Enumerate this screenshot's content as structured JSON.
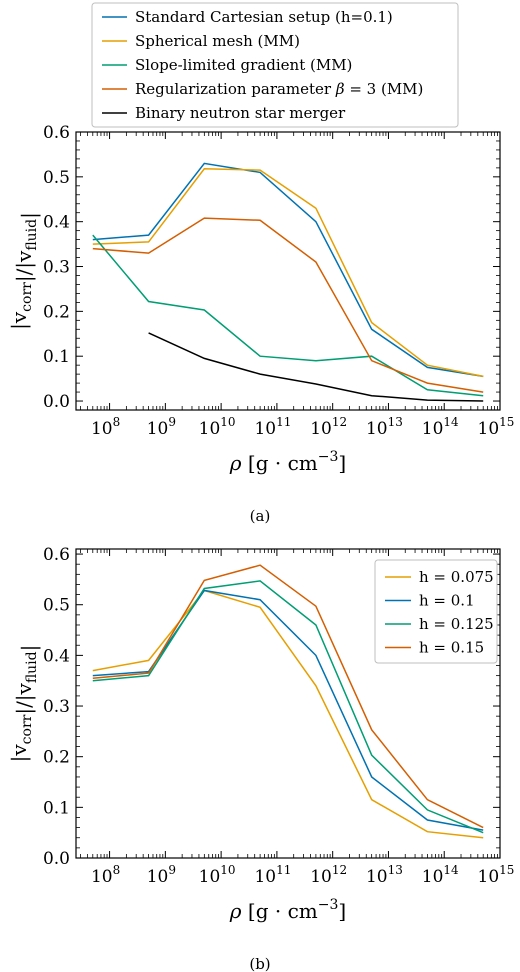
{
  "chart_data": [
    {
      "type": "line",
      "caption": "(a)",
      "xlabel": "ρ [g · cm⁻³]",
      "ylabel": "|v_corr|/|v_fluid|",
      "xscale": "log",
      "xlim": [
        25000000.0,
        1000000000000000.0
      ],
      "ylim": [
        -0.02,
        0.6
      ],
      "yticks": [
        "0.0",
        "0.1",
        "0.2",
        "0.3",
        "0.4",
        "0.5",
        "0.6"
      ],
      "xticks": [
        "10^8",
        "10^9",
        "10^10",
        "10^11",
        "10^12",
        "10^13",
        "10^14",
        "10^15"
      ],
      "legend_position": "above plot",
      "series": [
        {
          "name": "Standard Cartesian setup (h=0.1)",
          "color": "#0072B2",
          "x": [
            50000000.0,
            500000000.0,
            5000000000.0,
            50000000000.0,
            500000000000.0,
            5000000000000.0,
            50000000000000.0,
            500000000000000.0
          ],
          "y": [
            0.36,
            0.37,
            0.53,
            0.51,
            0.4,
            0.16,
            0.075,
            0.055
          ]
        },
        {
          "name": "Spherical mesh (MM)",
          "color": "#E69F00",
          "x": [
            50000000.0,
            500000000.0,
            5000000000.0,
            50000000000.0,
            500000000000.0,
            5000000000000.0,
            50000000000000.0,
            500000000000000.0
          ],
          "y": [
            0.35,
            0.355,
            0.518,
            0.515,
            0.43,
            0.175,
            0.08,
            0.055
          ]
        },
        {
          "name": "Slope-limited gradient (MM)",
          "color": "#009E73",
          "x": [
            50000000.0,
            500000000.0,
            5000000000.0,
            50000000000.0,
            500000000000.0,
            5000000000000.0,
            50000000000000.0,
            500000000000000.0
          ],
          "y": [
            0.37,
            0.222,
            0.203,
            0.1,
            0.09,
            0.1,
            0.025,
            0.012
          ]
        },
        {
          "name": "Regularization parameter β = 3 (MM)",
          "color": "#D55E00",
          "x": [
            50000000.0,
            500000000.0,
            5000000000.0,
            50000000000.0,
            500000000000.0,
            5000000000000.0,
            50000000000000.0,
            500000000000000.0
          ],
          "y": [
            0.34,
            0.33,
            0.408,
            0.403,
            0.31,
            0.09,
            0.04,
            0.02
          ]
        },
        {
          "name": "Binary neutron star merger",
          "color": "#000000",
          "x": [
            500000000.0,
            5000000000.0,
            50000000000.0,
            500000000000.0,
            5000000000000.0,
            50000000000000.0,
            500000000000000.0
          ],
          "y": [
            0.152,
            0.095,
            0.06,
            0.038,
            0.012,
            0.002,
            0.0
          ]
        }
      ]
    },
    {
      "type": "line",
      "caption": "(b)",
      "xlabel": "ρ [g · cm⁻³]",
      "ylabel": "|v_corr|/|v_fluid|",
      "xscale": "log",
      "xlim": [
        25000000.0,
        1000000000000000.0
      ],
      "ylim": [
        0.0,
        0.61
      ],
      "yticks": [
        "0.0",
        "0.1",
        "0.2",
        "0.3",
        "0.4",
        "0.5",
        "0.6"
      ],
      "xticks": [
        "10^8",
        "10^9",
        "10^10",
        "10^11",
        "10^12",
        "10^13",
        "10^14",
        "10^15"
      ],
      "legend_position": "upper right",
      "series": [
        {
          "name": "h = 0.075",
          "color": "#E69F00",
          "x": [
            50000000.0,
            500000000.0,
            5000000000.0,
            50000000000.0,
            500000000000.0,
            5000000000000.0,
            50000000000000.0,
            500000000000000.0
          ],
          "y": [
            0.37,
            0.39,
            0.528,
            0.495,
            0.34,
            0.115,
            0.052,
            0.04
          ]
        },
        {
          "name": "h = 0.1",
          "color": "#0072B2",
          "x": [
            50000000.0,
            500000000.0,
            5000000000.0,
            50000000000.0,
            500000000000.0,
            5000000000000.0,
            50000000000000.0,
            500000000000000.0
          ],
          "y": [
            0.36,
            0.368,
            0.528,
            0.51,
            0.4,
            0.16,
            0.075,
            0.055
          ]
        },
        {
          "name": "h = 0.125",
          "color": "#009E73",
          "x": [
            50000000.0,
            500000000.0,
            5000000000.0,
            50000000000.0,
            500000000000.0,
            5000000000000.0,
            50000000000000.0,
            500000000000000.0
          ],
          "y": [
            0.35,
            0.36,
            0.532,
            0.547,
            0.46,
            0.203,
            0.095,
            0.05
          ]
        },
        {
          "name": "h = 0.15",
          "color": "#D55E00",
          "x": [
            50000000.0,
            500000000.0,
            5000000000.0,
            50000000000.0,
            500000000000.0,
            5000000000000.0,
            50000000000000.0,
            500000000000000.0
          ],
          "y": [
            0.355,
            0.365,
            0.548,
            0.578,
            0.497,
            0.253,
            0.115,
            0.06
          ]
        }
      ]
    }
  ]
}
